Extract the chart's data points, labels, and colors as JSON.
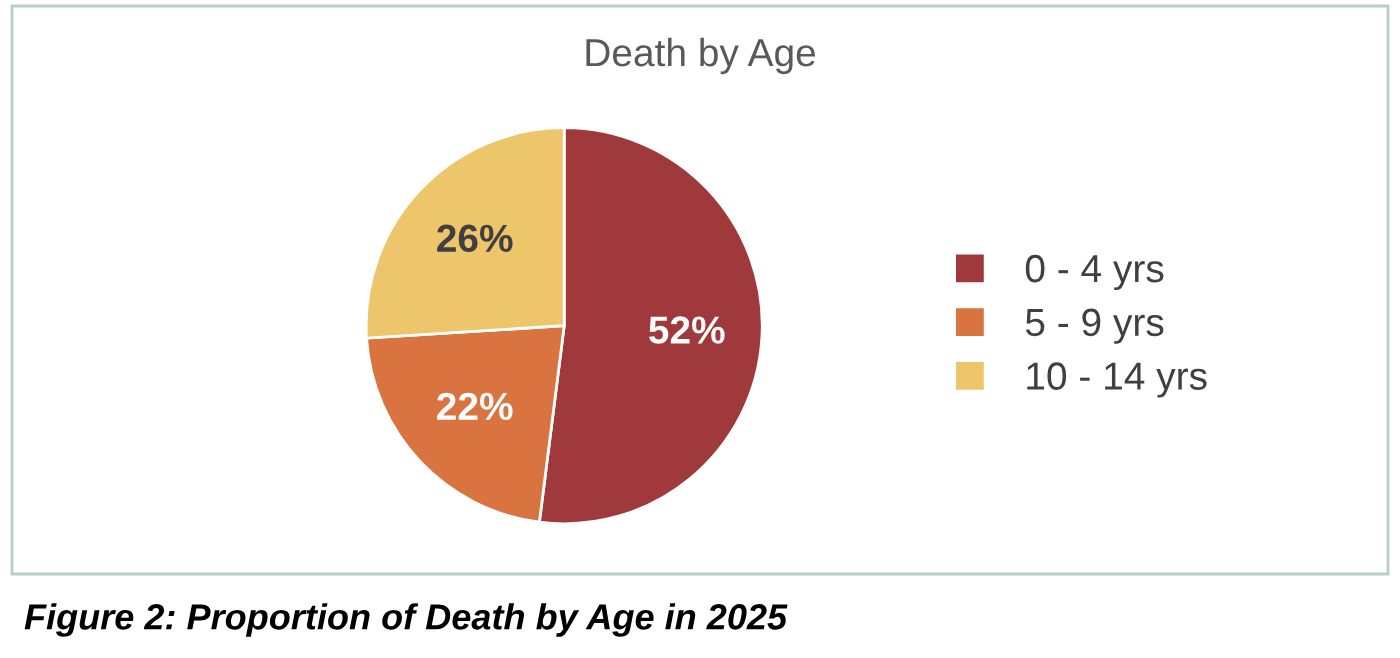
{
  "chart_data": {
    "type": "pie",
    "title": "Death by Age",
    "categories": [
      "0 - 4 yrs",
      "5 - 9 yrs",
      "10 - 14 yrs"
    ],
    "values": [
      52,
      22,
      26
    ],
    "colors": [
      "#a0393b",
      "#d97441",
      "#edc56b"
    ],
    "value_labels": [
      "52%",
      "22%",
      "26%"
    ],
    "legend": "right",
    "annotations": [
      "Figure 2: Proportion of Death by Age in 2025"
    ]
  }
}
